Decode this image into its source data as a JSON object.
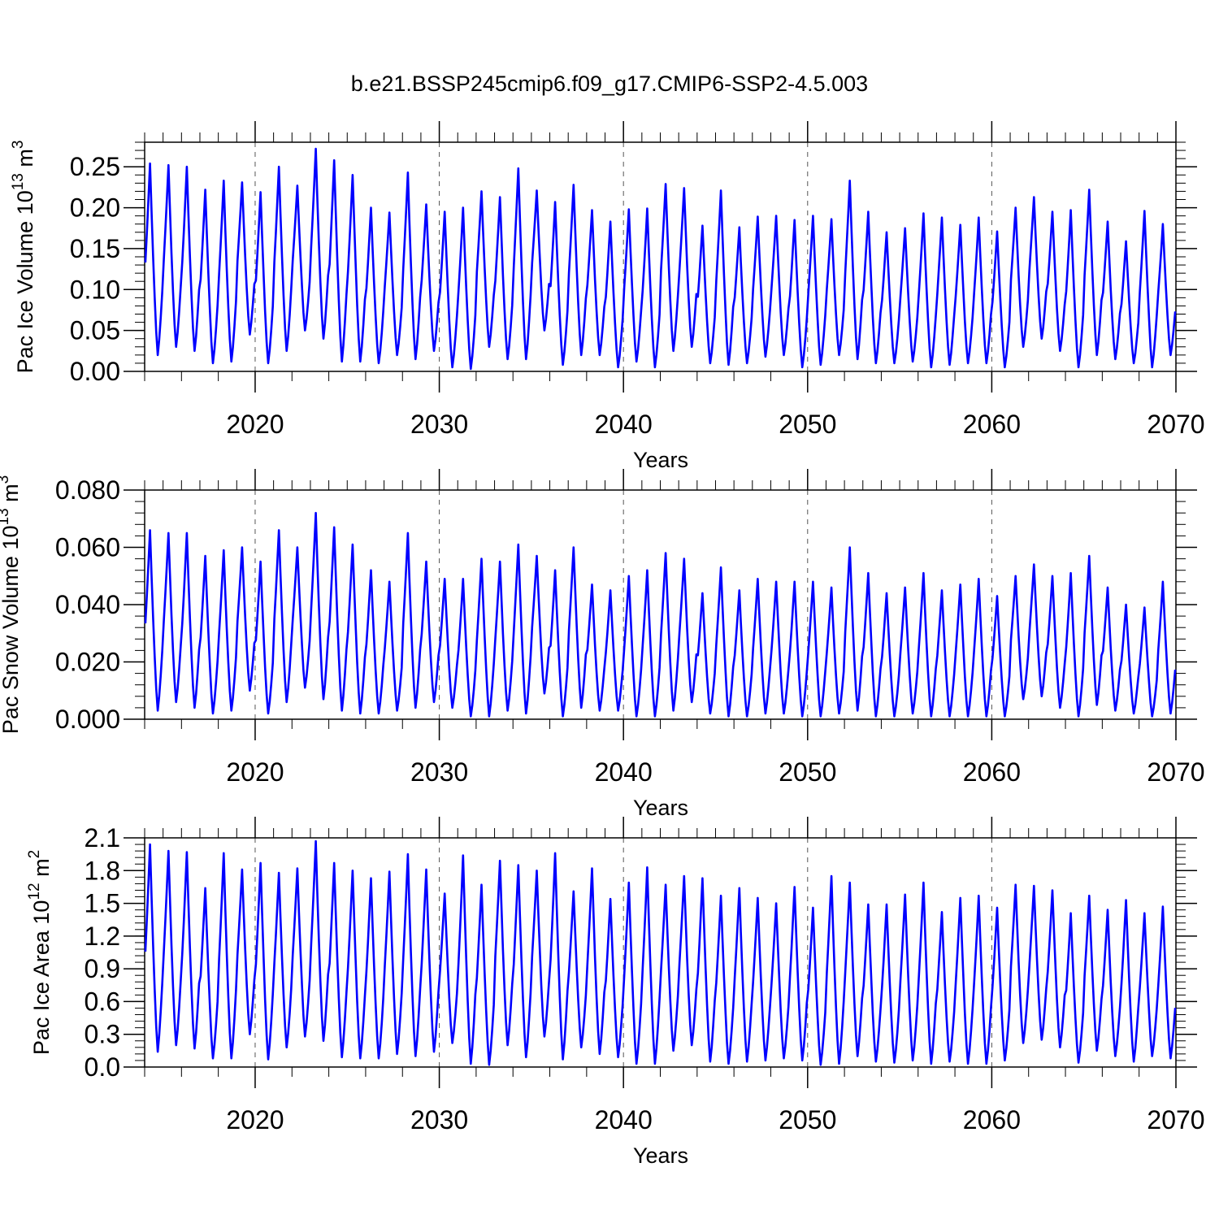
{
  "title": "b.e21.BSSP245cmip6.f09_g17.CMIP6-SSP2-4.5.003",
  "series_color": "#0000ff",
  "chart_data": [
    {
      "type": "line",
      "ylabel": "Pac Ice Volume 10",
      "ylabel_exp": "13",
      "ylabel_unit": " m",
      "ylabel_unit_exp": "3",
      "xlabel": "Years",
      "xlim": [
        2014.0,
        2070.0
      ],
      "ylim": [
        0.0,
        0.28
      ],
      "yticks": [
        0.0,
        0.05,
        0.1,
        0.15,
        0.2,
        0.25
      ],
      "ytick_labels": [
        "0.00",
        "0.05",
        "0.10",
        "0.15",
        "0.20",
        "0.25"
      ],
      "xticks": [
        2020,
        2030,
        2040,
        2050,
        2060,
        2070
      ],
      "xtick_labels": [
        "2020",
        "2030",
        "2040",
        "2050",
        "2060",
        "2070"
      ],
      "grid": "vertical dashed at decades",
      "series": [
        {
          "start_year": 2014,
          "annual_min": [
            0.02,
            0.03,
            0.025,
            0.01,
            0.012,
            0.045,
            0.01,
            0.025,
            0.05,
            0.04,
            0.012,
            0.012,
            0.01,
            0.02,
            0.015,
            0.025,
            0.005,
            0.003,
            0.03,
            0.015,
            0.015,
            0.05,
            0.008,
            0.02,
            0.02,
            0.005,
            0.012,
            0.005,
            0.025,
            0.03,
            0.01,
            0.008,
            0.01,
            0.018,
            0.02,
            0.005,
            0.008,
            0.02,
            0.015,
            0.01,
            0.01,
            0.012,
            0.005,
            0.008,
            0.01,
            0.01,
            0.005,
            0.03,
            0.04,
            0.025,
            0.005,
            0.02,
            0.015,
            0.01,
            0.005,
            0.02
          ],
          "annual_max": [
            0.254,
            0.252,
            0.25,
            0.222,
            0.233,
            0.231,
            0.219,
            0.25,
            0.227,
            0.272,
            0.258,
            0.24,
            0.2,
            0.194,
            0.243,
            0.204,
            0.195,
            0.2,
            0.22,
            0.213,
            0.248,
            0.221,
            0.207,
            0.228,
            0.197,
            0.183,
            0.198,
            0.199,
            0.229,
            0.224,
            0.178,
            0.221,
            0.176,
            0.189,
            0.19,
            0.185,
            0.19,
            0.186,
            0.233,
            0.195,
            0.17,
            0.175,
            0.193,
            0.188,
            0.179,
            0.188,
            0.171,
            0.2,
            0.213,
            0.195,
            0.197,
            0.222,
            0.183,
            0.159,
            0.196,
            0.18
          ]
        }
      ]
    },
    {
      "type": "line",
      "ylabel": "Pac Snow Volume 10",
      "ylabel_exp": "13",
      "ylabel_unit": " m",
      "ylabel_unit_exp": "3",
      "xlabel": "Years",
      "xlim": [
        2014.0,
        2070.0
      ],
      "ylim": [
        0.0,
        0.08
      ],
      "yticks": [
        0.0,
        0.02,
        0.04,
        0.06,
        0.08
      ],
      "ytick_labels": [
        "0.000",
        "0.020",
        "0.040",
        "0.060",
        "0.080"
      ],
      "xticks": [
        2020,
        2030,
        2040,
        2050,
        2060,
        2070
      ],
      "xtick_labels": [
        "2020",
        "2030",
        "2040",
        "2050",
        "2060",
        "2070"
      ],
      "grid": "vertical dashed at decades",
      "series": [
        {
          "start_year": 2014,
          "annual_min": [
            0.003,
            0.006,
            0.004,
            0.002,
            0.003,
            0.01,
            0.002,
            0.006,
            0.011,
            0.007,
            0.003,
            0.002,
            0.002,
            0.003,
            0.004,
            0.006,
            0.004,
            0.001,
            0.001,
            0.003,
            0.002,
            0.009,
            0.001,
            0.004,
            0.003,
            0.003,
            0.001,
            0.001,
            0.003,
            0.006,
            0.002,
            0.001,
            0.001,
            0.002,
            0.002,
            0.001,
            0.001,
            0.002,
            0.003,
            0.001,
            0.001,
            0.002,
            0.001,
            0.001,
            0.001,
            0.001,
            0.001,
            0.007,
            0.008,
            0.004,
            0.001,
            0.005,
            0.003,
            0.002,
            0.001,
            0.002
          ],
          "annual_max": [
            0.066,
            0.065,
            0.065,
            0.057,
            0.059,
            0.06,
            0.055,
            0.066,
            0.06,
            0.072,
            0.067,
            0.061,
            0.052,
            0.048,
            0.065,
            0.055,
            0.049,
            0.049,
            0.056,
            0.055,
            0.061,
            0.057,
            0.052,
            0.06,
            0.047,
            0.045,
            0.05,
            0.052,
            0.058,
            0.056,
            0.044,
            0.053,
            0.045,
            0.049,
            0.048,
            0.048,
            0.048,
            0.046,
            0.06,
            0.051,
            0.044,
            0.046,
            0.051,
            0.045,
            0.047,
            0.049,
            0.043,
            0.05,
            0.054,
            0.05,
            0.051,
            0.057,
            0.046,
            0.04,
            0.039,
            0.048
          ]
        }
      ]
    },
    {
      "type": "line",
      "ylabel": "Pac Ice Area 10",
      "ylabel_exp": "12",
      "ylabel_unit": " m",
      "ylabel_unit_exp": "2",
      "xlabel": "Years",
      "xlim": [
        2014.0,
        2070.0
      ],
      "ylim": [
        0.0,
        2.1
      ],
      "yticks": [
        0.0,
        0.3,
        0.6,
        0.9,
        1.2,
        1.5,
        1.8,
        2.1
      ],
      "ytick_labels": [
        "0.0",
        "0.3",
        "0.6",
        "0.9",
        "1.2",
        "1.5",
        "1.8",
        "2.1"
      ],
      "xticks": [
        2020,
        2030,
        2040,
        2050,
        2060,
        2070
      ],
      "xtick_labels": [
        "2020",
        "2030",
        "2040",
        "2050",
        "2060",
        "2070"
      ],
      "grid": "vertical dashed at decades",
      "series": [
        {
          "start_year": 2014,
          "annual_min": [
            0.14,
            0.2,
            0.17,
            0.08,
            0.08,
            0.3,
            0.07,
            0.18,
            0.28,
            0.24,
            0.09,
            0.08,
            0.08,
            0.12,
            0.1,
            0.14,
            0.22,
            0.03,
            0.02,
            0.2,
            0.09,
            0.28,
            0.07,
            0.18,
            0.12,
            0.09,
            0.03,
            0.03,
            0.15,
            0.2,
            0.05,
            0.03,
            0.05,
            0.06,
            0.08,
            0.06,
            0.02,
            0.03,
            0.1,
            0.05,
            0.04,
            0.06,
            0.03,
            0.05,
            0.03,
            0.03,
            0.06,
            0.22,
            0.25,
            0.18,
            0.04,
            0.15,
            0.1,
            0.05,
            0.1,
            0.08
          ]
        }
      ],
      "annual_max_series": [
        2.04,
        1.98,
        1.97,
        1.64,
        1.96,
        1.81,
        1.87,
        1.78,
        1.82,
        2.07,
        1.87,
        1.8,
        1.73,
        1.79,
        1.95,
        1.81,
        1.59,
        1.94,
        1.67,
        1.89,
        1.85,
        1.8,
        1.96,
        1.61,
        1.82,
        1.54,
        1.69,
        1.83,
        1.67,
        1.75,
        1.73,
        1.57,
        1.64,
        1.55,
        1.5,
        1.65,
        1.46,
        1.75,
        1.69,
        1.49,
        1.49,
        1.58,
        1.69,
        1.42,
        1.55,
        1.57,
        1.46,
        1.67,
        1.66,
        1.62,
        1.41,
        1.57,
        1.44,
        1.53,
        1.41,
        1.47
      ]
    }
  ]
}
